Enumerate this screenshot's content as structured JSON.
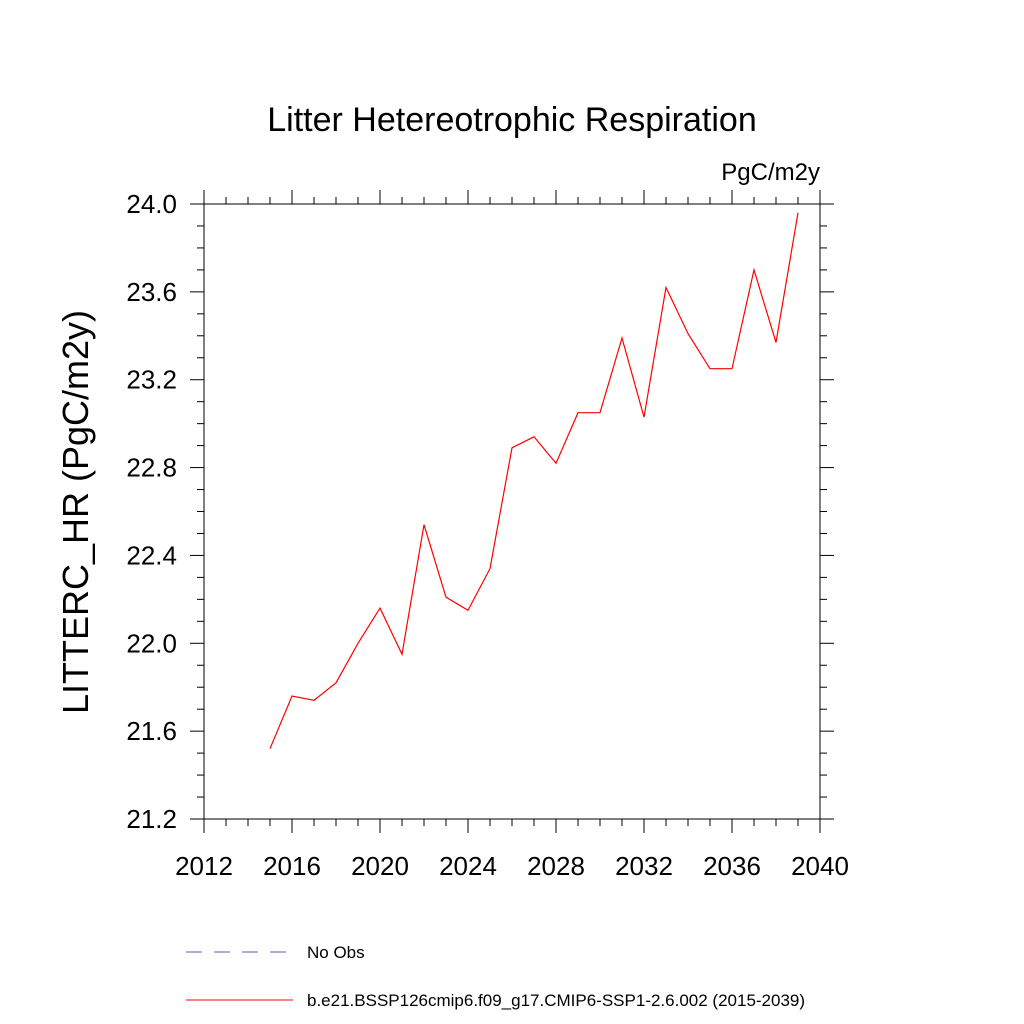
{
  "chart_data": {
    "type": "line",
    "title": "Litter Hetereotrophic Respiration",
    "units_label": "PgC/m2y",
    "xlabel": "",
    "ylabel": "LITTERC_HR  (PgC/m2y)",
    "xlim": [
      2012,
      2040
    ],
    "ylim": [
      21.2,
      24.0
    ],
    "x_ticks": [
      2012,
      2016,
      2020,
      2024,
      2028,
      2032,
      2036,
      2040
    ],
    "x_tick_labels": [
      "2012",
      "2016",
      "2020",
      "2024",
      "2028",
      "2032",
      "2036",
      "2040"
    ],
    "y_ticks": [
      21.2,
      21.6,
      22.0,
      22.4,
      22.8,
      23.2,
      23.6,
      24.0
    ],
    "y_tick_labels": [
      "21.2",
      "21.6",
      "22.0",
      "22.4",
      "22.8",
      "23.2",
      "23.6",
      "24.0"
    ],
    "grid": false,
    "legend_position": "bottom",
    "series": [
      {
        "name": "b.e21.BSSP126cmip6.f09_g17.CMIP6-SSP1-2.6.002 (2015-2039)",
        "color": "#ff0000",
        "style": "solid",
        "x": [
          2015,
          2016,
          2017,
          2018,
          2019,
          2020,
          2021,
          2022,
          2023,
          2024,
          2025,
          2026,
          2027,
          2028,
          2029,
          2030,
          2031,
          2032,
          2033,
          2034,
          2035,
          2036,
          2037,
          2038,
          2039
        ],
        "values": [
          21.52,
          21.76,
          21.74,
          21.82,
          22.0,
          22.16,
          21.95,
          22.54,
          22.21,
          22.15,
          22.34,
          22.89,
          22.94,
          22.82,
          23.05,
          23.05,
          23.39,
          23.03,
          23.62,
          23.41,
          23.25,
          23.25,
          23.7,
          23.37,
          23.96
        ]
      }
    ],
    "legend": [
      {
        "label": "No Obs",
        "color": "#5a5ab4",
        "style": "dashed"
      },
      {
        "label": "b.e21.BSSP126cmip6.f09_g17.CMIP6-SSP1-2.6.002 (2015-2039)",
        "color": "#ff0000",
        "style": "solid"
      }
    ]
  }
}
